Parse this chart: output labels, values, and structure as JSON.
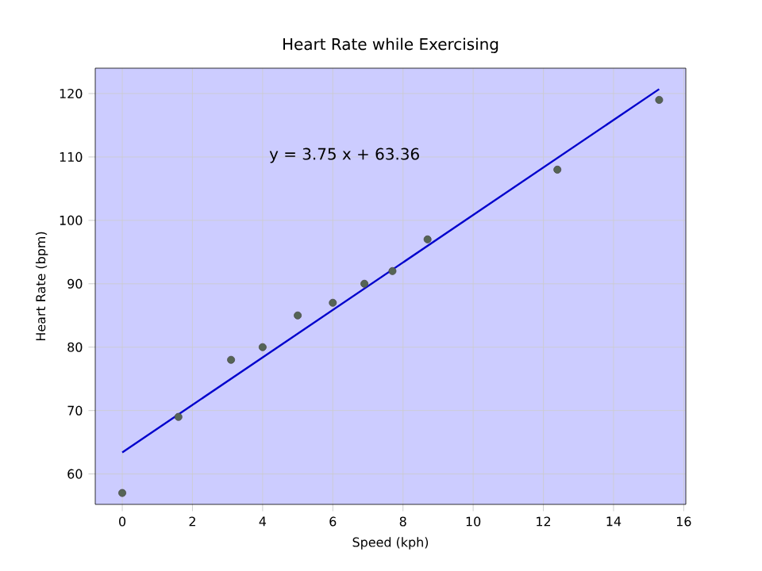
{
  "chart_data": {
    "type": "scatter",
    "title": "Heart Rate while Exercising",
    "xlabel": "Speed (kph)",
    "ylabel": "Heart Rate (bpm)",
    "annotations": [
      "y = 3.75 x + 63.36"
    ],
    "series": [
      {
        "color": "#556455",
        "x": [
          0,
          1.6,
          3.1,
          4,
          5,
          6,
          6.9,
          7.7,
          8.7,
          12.4,
          15.3
        ],
        "values": [
          57,
          69,
          78,
          80,
          85,
          87,
          90,
          92,
          97,
          108,
          119
        ],
        "marker": "circle"
      },
      {
        "type": "line",
        "color": "#0000cc",
        "x": [
          0,
          15.3
        ],
        "values": [
          63.4,
          120.7
        ],
        "marker": "none",
        "line_style": "solid"
      }
    ],
    "xlim": [
      -0.77,
      16.06
    ],
    "ylim": [
      55.2,
      124
    ],
    "xticks": [
      0,
      2,
      4,
      6,
      8,
      10,
      12,
      14,
      16
    ],
    "yticks": [
      60,
      70,
      80,
      90,
      100,
      110,
      120
    ],
    "grid": true
  }
}
